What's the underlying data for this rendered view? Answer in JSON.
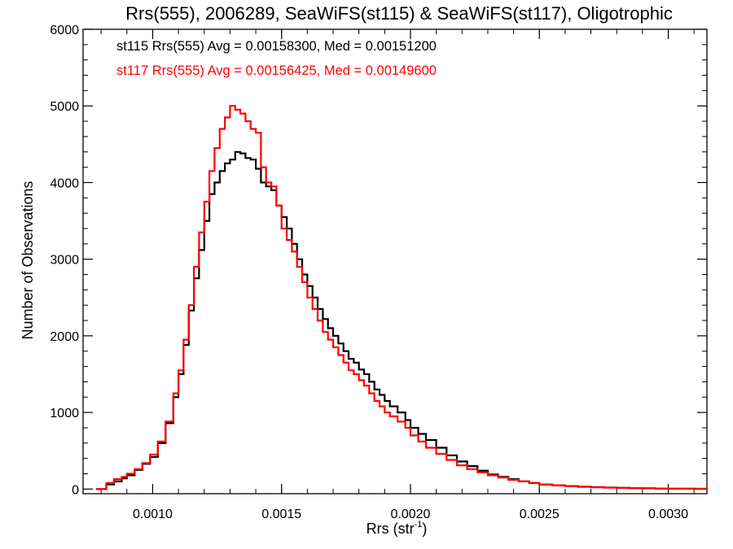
{
  "chart_data": {
    "type": "line",
    "title": "Rrs(555), 2006289, SeaWiFS(st115) & SeaWiFS(st117), Oligotrophic",
    "xlabel": "Rrs (str",
    "xlabel_superscript": "-1",
    "xlabel_suffix": ")",
    "ylabel": "Number of Observations",
    "xlim": [
      0.00073,
      0.00315
    ],
    "ylim": [
      -60,
      6000
    ],
    "xticks": [
      0.001,
      0.0015,
      0.002,
      0.0025,
      0.003
    ],
    "xtick_labels": [
      "0.0010",
      "0.0015",
      "0.0020",
      "0.0025",
      "0.0030"
    ],
    "yticks": [
      0,
      1000,
      2000,
      3000,
      4000,
      5000,
      6000
    ],
    "ytick_labels": [
      "0",
      "1000",
      "2000",
      "3000",
      "4000",
      "5000",
      "6000"
    ],
    "grid": false,
    "annotations": [
      {
        "text": "st115 Rrs(555) Avg = 0.00158300, Med = 0.00151200",
        "color": "#000000"
      },
      {
        "text": "st117 Rrs(555) Avg = 0.00156425, Med = 0.00149600",
        "color": "#ff0000"
      }
    ],
    "series": [
      {
        "color": "#000000",
        "x": [
          0.00078,
          0.0008,
          0.00082,
          0.00085,
          0.00088,
          0.0009,
          0.00093,
          0.00096,
          0.00099,
          0.00102,
          0.00105,
          0.00108,
          0.0011,
          0.00112,
          0.00114,
          0.00116,
          0.00118,
          0.0012,
          0.00122,
          0.00124,
          0.00126,
          0.00128,
          0.0013,
          0.00132,
          0.00134,
          0.00136,
          0.00138,
          0.0014,
          0.00142,
          0.00144,
          0.00146,
          0.00148,
          0.0015,
          0.00152,
          0.00154,
          0.00156,
          0.00158,
          0.0016,
          0.00162,
          0.00164,
          0.00166,
          0.00168,
          0.0017,
          0.00172,
          0.00174,
          0.00176,
          0.00178,
          0.0018,
          0.00182,
          0.00184,
          0.00186,
          0.00188,
          0.0019,
          0.00192,
          0.00195,
          0.00198,
          0.002,
          0.00203,
          0.00206,
          0.0021,
          0.00214,
          0.00218,
          0.00222,
          0.00226,
          0.0023,
          0.00234,
          0.00238,
          0.00242,
          0.00246,
          0.0025,
          0.00255,
          0.0026,
          0.00265,
          0.0027,
          0.00275,
          0.0028,
          0.00285,
          0.0029,
          0.00295,
          0.003,
          0.00305,
          0.0031,
          0.00315
        ],
        "values": [
          0,
          0,
          60,
          100,
          140,
          180,
          250,
          330,
          420,
          600,
          860,
          1200,
          1500,
          1880,
          2330,
          2750,
          3120,
          3500,
          3850,
          4000,
          4150,
          4250,
          4300,
          4400,
          4380,
          4320,
          4300,
          4180,
          4000,
          3950,
          3900,
          3700,
          3550,
          3400,
          3200,
          3000,
          2800,
          2650,
          2500,
          2350,
          2220,
          2100,
          2000,
          1900,
          1800,
          1700,
          1650,
          1560,
          1500,
          1400,
          1300,
          1230,
          1150,
          1080,
          1000,
          900,
          800,
          720,
          640,
          540,
          440,
          360,
          300,
          240,
          190,
          160,
          130,
          100,
          80,
          60,
          50,
          40,
          30,
          25,
          20,
          15,
          12,
          10,
          8,
          6,
          5,
          4,
          3
        ]
      },
      {
        "color": "#ff0000",
        "x": [
          0.00078,
          0.0008,
          0.00082,
          0.00085,
          0.00088,
          0.0009,
          0.00093,
          0.00096,
          0.00099,
          0.00102,
          0.00105,
          0.00108,
          0.0011,
          0.00112,
          0.00114,
          0.00116,
          0.00118,
          0.0012,
          0.00122,
          0.00124,
          0.00126,
          0.00128,
          0.0013,
          0.00132,
          0.00134,
          0.00136,
          0.00138,
          0.0014,
          0.00142,
          0.00144,
          0.00146,
          0.00148,
          0.0015,
          0.00152,
          0.00154,
          0.00156,
          0.00158,
          0.0016,
          0.00162,
          0.00164,
          0.00166,
          0.00168,
          0.0017,
          0.00172,
          0.00174,
          0.00176,
          0.00178,
          0.0018,
          0.00182,
          0.00184,
          0.00186,
          0.00188,
          0.0019,
          0.00192,
          0.00195,
          0.00198,
          0.002,
          0.00203,
          0.00206,
          0.0021,
          0.00214,
          0.00218,
          0.00222,
          0.00226,
          0.0023,
          0.00234,
          0.00238,
          0.00242,
          0.00246,
          0.0025,
          0.00255,
          0.0026,
          0.00265,
          0.0027,
          0.00275,
          0.0028,
          0.00285,
          0.0029,
          0.00295,
          0.003,
          0.00305,
          0.0031,
          0.00315
        ],
        "values": [
          0,
          0,
          80,
          130,
          160,
          200,
          260,
          340,
          450,
          620,
          880,
          1250,
          1550,
          1950,
          2400,
          2900,
          3350,
          3750,
          4150,
          4450,
          4700,
          4850,
          5000,
          4950,
          4900,
          4800,
          4700,
          4650,
          4200,
          4000,
          3950,
          3700,
          3400,
          3250,
          3100,
          2900,
          2700,
          2500,
          2350,
          2200,
          2050,
          1950,
          1850,
          1750,
          1650,
          1550,
          1500,
          1420,
          1350,
          1250,
          1150,
          1080,
          1000,
          950,
          880,
          800,
          700,
          620,
          540,
          460,
          380,
          310,
          260,
          220,
          180,
          150,
          120,
          100,
          80,
          60,
          50,
          40,
          30,
          25,
          20,
          15,
          12,
          10,
          8,
          6,
          5,
          4,
          3
        ]
      }
    ]
  }
}
